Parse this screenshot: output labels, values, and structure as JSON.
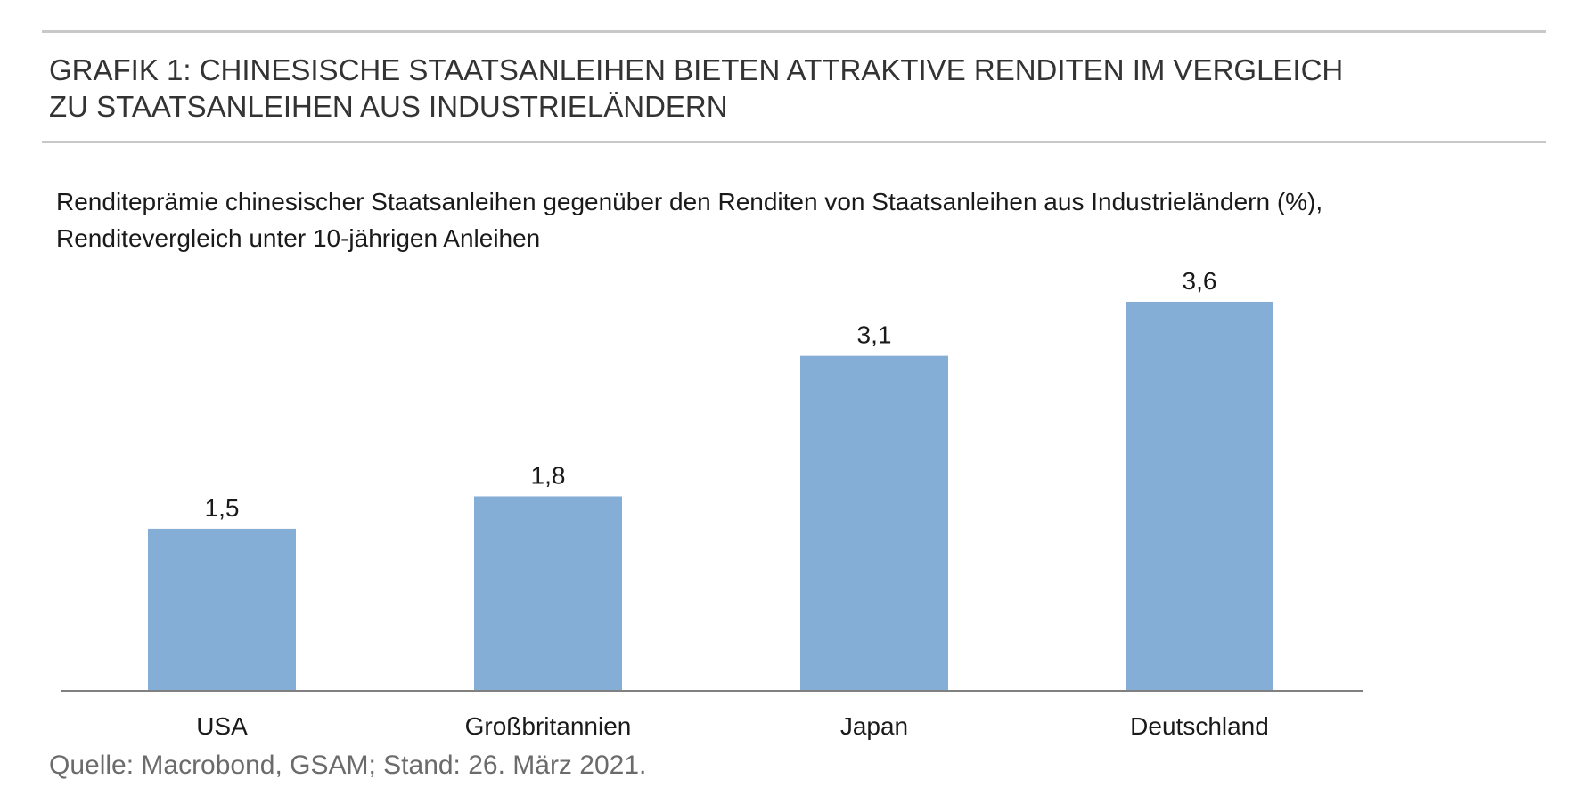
{
  "header": {
    "title_line1": "GRAFIK 1: CHINESISCHE STAATSANLEIHEN BIETEN ATTRAKTIVE RENDITEN IM VERGLEICH",
    "title_line2": "ZU STAATSANLEIHEN AUS INDUSTRIELÄNDERN"
  },
  "chart_data": {
    "type": "bar",
    "subtitle_line1": "Renditeprämie chinesischer Staatsanleihen gegenüber den Renditen von Staatsanleihen aus Industrieländern (%),",
    "subtitle_line2": "Renditevergleich unter 10-jährigen Anleihen",
    "categories": [
      "USA",
      "Großbritannien",
      "Japan",
      "Deutschland"
    ],
    "values": [
      1.5,
      1.8,
      3.1,
      3.6
    ],
    "value_labels": [
      "1,5",
      "1,8",
      "3,1",
      "3,6"
    ],
    "ylim": [
      0,
      3.6
    ],
    "grid": false,
    "bar_color": "#85aed6",
    "axis_color": "#808080"
  },
  "footer": {
    "source": "Quelle: Macrobond, GSAM; Stand: 26. März 2021."
  }
}
